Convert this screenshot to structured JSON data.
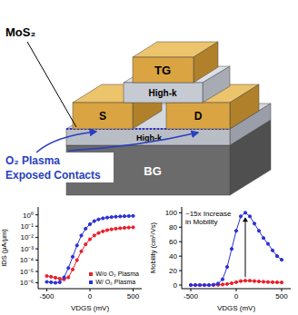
{
  "diagram": {
    "labels": {
      "material": "MoS₂",
      "top_gate": "TG",
      "source": "S",
      "drain": "D",
      "upper_dielectric": "High-k",
      "lower_dielectric": "High-k",
      "back_gate": "BG",
      "treatment": [
        "O₂ Plasma",
        "Exposed Contacts"
      ]
    }
  },
  "chart_data": [
    {
      "type": "line",
      "x_label": "VDGS (mV)",
      "y_label": "IDS (μA/μm)",
      "log": "y",
      "xlim": [
        -600,
        600
      ],
      "xticks": [
        -500,
        0,
        500
      ],
      "ylim": [
        3e-07,
        5
      ],
      "yticks": [
        {
          "value": 1e-06,
          "label": "10⁻⁶"
        },
        {
          "value": 1e-05,
          "label": "10⁻⁵"
        },
        {
          "value": 0.0001,
          "label": "10⁻⁴"
        },
        {
          "value": 0.001,
          "label": "10⁻³"
        },
        {
          "value": 0.01,
          "label": "10⁻²"
        },
        {
          "value": 0.1,
          "label": "10⁻¹"
        },
        {
          "value": 1,
          "label": "10⁰"
        }
      ],
      "legend": "lower right",
      "x": [
        -500,
        -450,
        -400,
        -350,
        -300,
        -250,
        -200,
        -150,
        -100,
        -50,
        0,
        50,
        100,
        150,
        200,
        250,
        300,
        350,
        400,
        450,
        500
      ],
      "series": [
        {
          "name": "W/o O₂ Plasma",
          "color": "#e8212b",
          "marker": "circle",
          "line_style": "solid",
          "values": [
            4e-06,
            3.4e-06,
            2.8e-06,
            2.3e-06,
            2e-06,
            3e-06,
            1.5e-05,
            0.0001,
            0.0006,
            0.0025,
            0.007,
            0.015,
            0.025,
            0.035,
            0.045,
            0.053,
            0.06,
            0.066,
            0.072,
            0.076,
            0.08
          ]
        },
        {
          "name": "W/ O₂ Plasma",
          "color": "#2b2fd6",
          "marker": "circle",
          "line_style": "solid",
          "values": [
            1.2e-06,
            1.1e-06,
            1e-06,
            1.1e-06,
            3e-06,
            2e-05,
            0.0002,
            0.002,
            0.015,
            0.06,
            0.15,
            0.28,
            0.4,
            0.5,
            0.58,
            0.64,
            0.69,
            0.73,
            0.76,
            0.79,
            0.81
          ]
        }
      ]
    },
    {
      "type": "line",
      "x_label": "VDGS (mV)",
      "y_label": "Mobility (cm²/Vs)",
      "xlim": [
        -600,
        600
      ],
      "xticks": [
        -500,
        0,
        500
      ],
      "ylim": [
        -5,
        108
      ],
      "yticks": [
        0,
        20,
        40,
        60,
        80,
        100
      ],
      "annotation": "~15x Increase in Mobility",
      "x": [
        -500,
        -450,
        -400,
        -350,
        -300,
        -250,
        -200,
        -150,
        -100,
        -50,
        0,
        50,
        100,
        150,
        200,
        250,
        300,
        350,
        400,
        450,
        500
      ],
      "series": [
        {
          "name": "W/o O₂ Plasma",
          "color": "#e8212b",
          "marker": "circle",
          "line_style": "solid",
          "values": [
            0,
            0,
            0,
            0,
            0,
            0,
            0.3,
            0.8,
            1.5,
            2.5,
            4,
            5.5,
            6,
            6,
            5.5,
            5,
            4.5,
            4.2,
            4,
            3.8,
            3.6
          ]
        },
        {
          "name": "W/ O₂ Plasma",
          "color": "#2b2fd6",
          "marker": "circle",
          "line_style": "solid",
          "values": [
            0,
            0,
            0,
            0,
            0,
            0.5,
            2,
            8,
            25,
            50,
            75,
            95,
            100,
            95,
            85,
            75,
            65,
            57,
            48,
            40,
            35
          ]
        }
      ]
    }
  ]
}
